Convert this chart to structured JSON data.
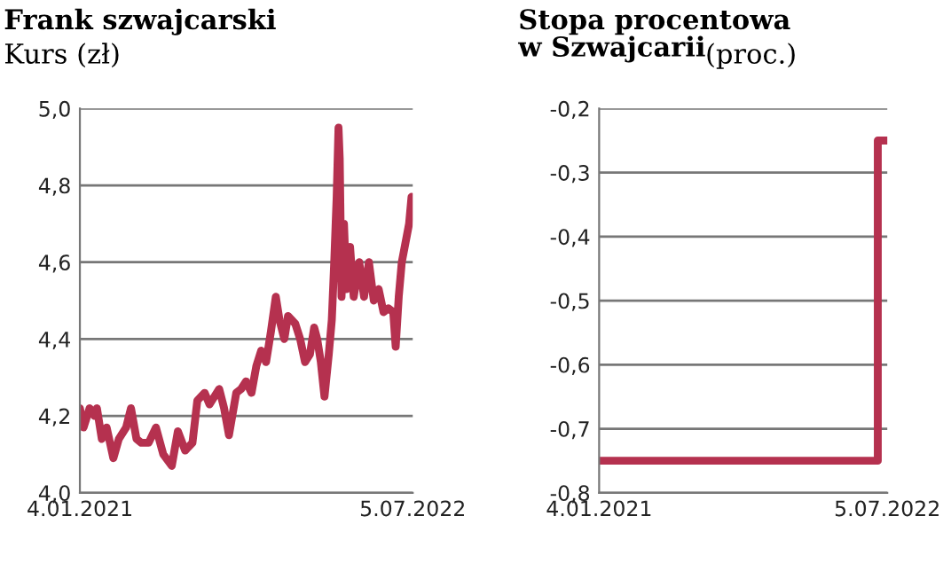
{
  "chart_data": [
    {
      "type": "line",
      "title": "Frank szwajcarski",
      "subtitle": "Kurs (zł)",
      "series": [
        {
          "color": "#b5314f",
          "x": [
            "2021-01-04",
            "2021-01-10",
            "2021-01-20",
            "2021-01-28",
            "2021-02-01",
            "2021-02-09",
            "2021-02-17",
            "2021-02-28",
            "2021-03-09",
            "2021-03-21",
            "2021-03-29",
            "2021-04-07",
            "2021-04-15",
            "2021-04-27",
            "2021-05-09",
            "2021-05-21",
            "2021-06-04",
            "2021-06-14",
            "2021-06-26",
            "2021-07-08",
            "2021-07-16",
            "2021-07-28",
            "2021-08-05",
            "2021-08-13",
            "2021-08-21",
            "2021-08-29",
            "2021-09-06",
            "2021-09-18",
            "2021-09-26",
            "2021-10-04",
            "2021-10-13",
            "2021-10-21",
            "2021-10-29",
            "2021-11-06",
            "2021-11-14",
            "2021-11-22",
            "2021-11-28",
            "2021-12-06",
            "2021-12-12",
            "2021-12-24",
            "2022-01-01",
            "2022-01-09",
            "2022-01-17",
            "2022-01-24",
            "2022-01-29",
            "2022-02-04",
            "2022-02-10",
            "2022-02-17",
            "2022-02-22",
            "2022-02-26",
            "2022-03-02",
            "2022-03-05",
            "2022-03-07",
            "2022-03-10",
            "2022-03-14",
            "2022-03-18",
            "2022-03-24",
            "2022-03-30",
            "2022-04-08",
            "2022-04-16",
            "2022-04-24",
            "2022-05-02",
            "2022-05-10",
            "2022-05-18",
            "2022-05-26",
            "2022-06-03",
            "2022-06-07",
            "2022-06-12",
            "2022-06-17",
            "2022-06-23",
            "2022-06-29",
            "2022-07-03"
          ],
          "values": [
            4.22,
            4.17,
            4.22,
            4.2,
            4.22,
            4.14,
            4.17,
            4.09,
            4.14,
            4.17,
            4.22,
            4.14,
            4.13,
            4.13,
            4.17,
            4.1,
            4.07,
            4.16,
            4.11,
            4.13,
            4.24,
            4.26,
            4.23,
            4.25,
            4.27,
            4.22,
            4.15,
            4.26,
            4.27,
            4.29,
            4.26,
            4.33,
            4.37,
            4.34,
            4.42,
            4.51,
            4.45,
            4.4,
            4.46,
            4.44,
            4.4,
            4.34,
            4.36,
            4.43,
            4.4,
            4.34,
            4.25,
            4.36,
            4.45,
            4.6,
            4.77,
            4.95,
            4.87,
            4.51,
            4.7,
            4.53,
            4.64,
            4.51,
            4.6,
            4.51,
            4.6,
            4.5,
            4.53,
            4.47,
            4.48,
            4.47,
            4.38,
            4.51,
            4.6,
            4.65,
            4.7,
            4.77
          ]
        }
      ],
      "xlim": [
        "2021-01-04",
        "2022-07-05"
      ],
      "xticks": [
        {
          "value": "2021-01-04",
          "label": "4.01.2021"
        },
        {
          "value": "2022-07-05",
          "label": "5.07.2022"
        }
      ],
      "ylim": [
        4.0,
        5.0
      ],
      "yticks": [
        {
          "value": 4.0,
          "label": "4,0"
        },
        {
          "value": 4.2,
          "label": "4,2"
        },
        {
          "value": 4.4,
          "label": "4,4"
        },
        {
          "value": 4.6,
          "label": "4,6"
        },
        {
          "value": 4.8,
          "label": "4,8"
        },
        {
          "value": 5.0,
          "label": "5,0"
        }
      ],
      "grid": "y",
      "line_style": "solid"
    },
    {
      "type": "line",
      "title": "Stopa procentowa\nw Szwajcarii",
      "subtitle": "(proc.)",
      "series": [
        {
          "color": "#b5314f",
          "x": [
            "2021-01-04",
            "2022-06-17",
            "2022-06-17",
            "2022-07-05"
          ],
          "values": [
            -0.75,
            -0.75,
            -0.25,
            -0.25
          ]
        }
      ],
      "xlim": [
        "2021-01-04",
        "2022-07-05"
      ],
      "xticks": [
        {
          "value": "2021-01-04",
          "label": "4.01.2021"
        },
        {
          "value": "2022-07-05",
          "label": "5.07.2022"
        }
      ],
      "ylim": [
        -0.8,
        -0.2
      ],
      "yticks": [
        {
          "value": -0.8,
          "label": "-0,8"
        },
        {
          "value": -0.7,
          "label": "-0,7"
        },
        {
          "value": -0.6,
          "label": "-0,6"
        },
        {
          "value": -0.5,
          "label": "-0,5"
        },
        {
          "value": -0.4,
          "label": "-0,4"
        },
        {
          "value": -0.3,
          "label": "-0,3"
        },
        {
          "value": -0.2,
          "label": "-0,2"
        }
      ],
      "grid": "y",
      "line_style": "solid"
    }
  ]
}
